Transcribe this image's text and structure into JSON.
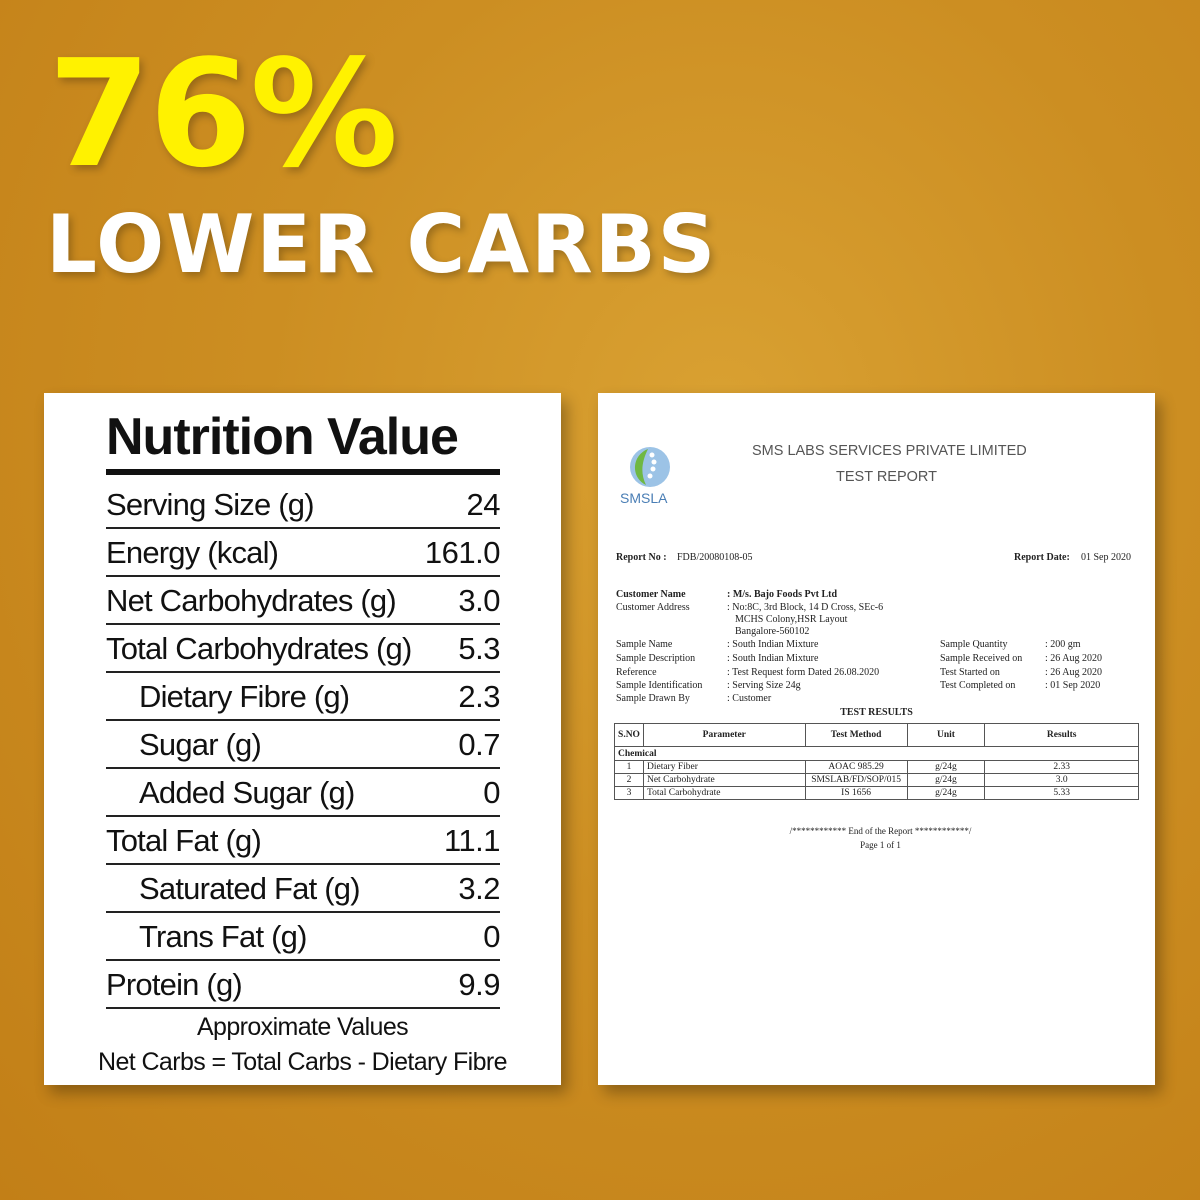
{
  "headline": {
    "percent": "76%",
    "text": "LOWER CARBS"
  },
  "colors": {
    "accent_yellow": "#fff200",
    "background": "#cc8e22"
  },
  "nutrition": {
    "title": "Nutrition Value",
    "rows": [
      {
        "label": "Serving Size (g)",
        "value": "24",
        "indent": false
      },
      {
        "label": "Energy (kcal)",
        "value": "161.0",
        "indent": false
      },
      {
        "label": "Net Carbohydrates (g)",
        "value": "3.0",
        "indent": false
      },
      {
        "label": "Total Carbohydrates (g)",
        "value": "5.3",
        "indent": false
      },
      {
        "label": "Dietary Fibre (g)",
        "value": "2.3",
        "indent": true
      },
      {
        "label": "Sugar (g)",
        "value": "0.7",
        "indent": true
      },
      {
        "label": "Added Sugar (g)",
        "value": "0",
        "indent": true
      },
      {
        "label": "Total Fat (g)",
        "value": "11.1",
        "indent": false
      },
      {
        "label": "Saturated Fat (g)",
        "value": "3.2",
        "indent": true
      },
      {
        "label": "Trans Fat (g)",
        "value": "0",
        "indent": true
      },
      {
        "label": "Protein (g)",
        "value": "9.9",
        "indent": false
      }
    ],
    "note1": "Approximate Values",
    "note2": "Net Carbs = Total Carbs - Dietary Fibre"
  },
  "report": {
    "logo_text": "SMSLA",
    "company": "SMS LABS SERVICES PRIVATE LIMITED",
    "title": "TEST REPORT",
    "report_no_label": "Report No :",
    "report_no": "FDB/20080108-05",
    "report_date_label": "Report Date:",
    "report_date": "01 Sep 2020",
    "left_fields": [
      {
        "label": "Customer Name",
        "value": ": M/s. Bajo Foods Pvt Ltd"
      },
      {
        "label": "Customer Address",
        "value": ": No:8C, 3rd Block, 14 D Cross, SEc-6"
      },
      {
        "label": "",
        "value": "MCHS Colony,HSR Layout"
      },
      {
        "label": "",
        "value": "Bangalore-560102"
      },
      {
        "label": "Sample Name",
        "value": ": South Indian Mixture"
      },
      {
        "label": "Sample Description",
        "value": ": South Indian Mixture"
      },
      {
        "label": "Reference",
        "value": ": Test Request form Dated 26.08.2020"
      },
      {
        "label": "Sample Identification",
        "value": ": Serving Size 24g"
      },
      {
        "label": "Sample Drawn By",
        "value": ": Customer"
      }
    ],
    "right_fields": [
      {
        "label": "Sample Quantity",
        "value": ": 200 gm"
      },
      {
        "label": "Sample Received on",
        "value": ": 26 Aug 2020"
      },
      {
        "label": "Test Started on",
        "value": ": 26 Aug 2020"
      },
      {
        "label": "Test Completed on",
        "value": ": 01 Sep 2020"
      }
    ],
    "results_title": "TEST RESULTS",
    "headers": [
      "S.NO",
      "Parameter",
      "Test Method",
      "Unit",
      "Results"
    ],
    "group": "Chemical",
    "rows": [
      [
        "1",
        "Dietary Fiber",
        "AOAC 985.29",
        "g/24g",
        "2.33"
      ],
      [
        "2",
        "Net Carbohydrate",
        "SMSLAB/FD/SOP/015",
        "g/24g",
        "3.0"
      ],
      [
        "3",
        "Total Carbohydrate",
        "IS 1656",
        "g/24g",
        "5.33"
      ]
    ],
    "end": "/************ End of the Report ************/",
    "page": "Page 1 of 1"
  }
}
